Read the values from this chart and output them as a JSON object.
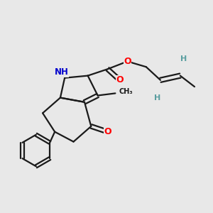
{
  "bg_color": "#e8e8e8",
  "bond_color": "#1a1a1a",
  "bond_width": 1.6,
  "atom_colors": {
    "O": "#ff0000",
    "N": "#0000cc",
    "H": "#5a9ea0",
    "C": "#1a1a1a"
  },
  "fig_bg": "#e8e8e8"
}
